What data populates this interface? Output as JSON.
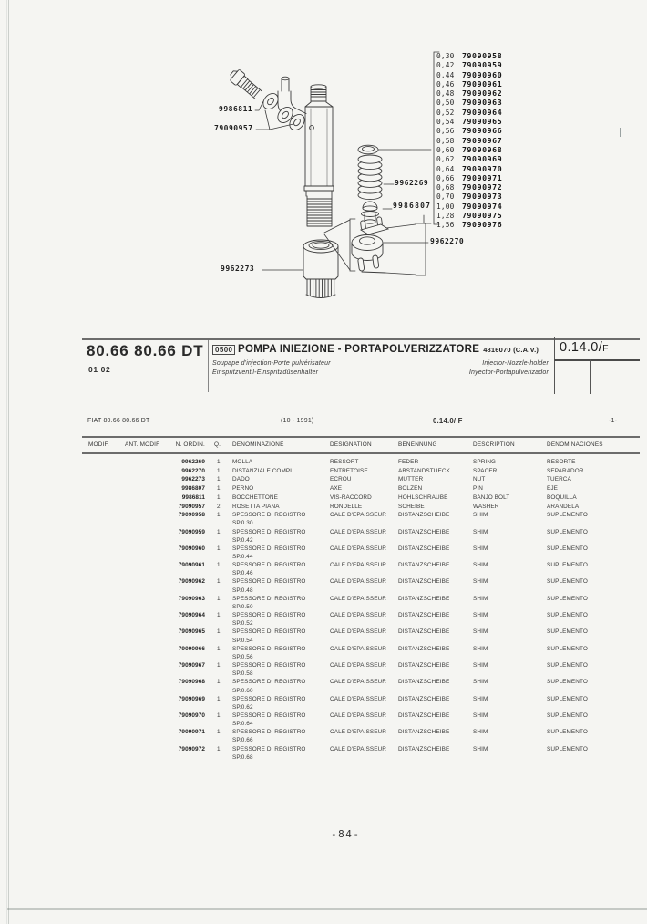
{
  "page": {
    "number": "-84-"
  },
  "diagram": {
    "labels": {
      "banjo_bolt": "9986811",
      "washers": "79090957",
      "spring": "9962269",
      "pin": "9986807",
      "spacer": "9962270",
      "cap_nut": "9962273"
    },
    "shim_list": [
      {
        "thickness": "0,30",
        "part": "79090958"
      },
      {
        "thickness": "0,42",
        "part": "79090959"
      },
      {
        "thickness": "0,44",
        "part": "79090960"
      },
      {
        "thickness": "0,46",
        "part": "79090961"
      },
      {
        "thickness": "0,48",
        "part": "79090962"
      },
      {
        "thickness": "0,50",
        "part": "79090963"
      },
      {
        "thickness": "0,52",
        "part": "79090964"
      },
      {
        "thickness": "0,54",
        "part": "79090965"
      },
      {
        "thickness": "0,56",
        "part": "79090966"
      },
      {
        "thickness": "0,58",
        "part": "79090967"
      },
      {
        "thickness": "0,60",
        "part": "79090968"
      },
      {
        "thickness": "0,62",
        "part": "79090969"
      },
      {
        "thickness": "0,64",
        "part": "79090970"
      },
      {
        "thickness": "0,66",
        "part": "79090971"
      },
      {
        "thickness": "0,68",
        "part": "79090972"
      },
      {
        "thickness": "0,70",
        "part": "79090973"
      },
      {
        "thickness": "1,00",
        "part": "79090974"
      },
      {
        "thickness": "1,28",
        "part": "79090975"
      },
      {
        "thickness": "1,56",
        "part": "79090976"
      }
    ]
  },
  "header": {
    "model_code": "80.66 80.66 DT",
    "model_variant": "01 02",
    "section_code": "0500",
    "title": "POMPA INIEZIONE - PORTAPOLVERIZZATORE",
    "title_ref": "4816070 (C.A.V.)",
    "subtitle_fr": "Soupape d'injection-Porte pulvérisateur",
    "subtitle_de": "Einspritzventil-Einspritzdüsenhalter",
    "subtitle_en": "Injector-Nozzle-holder",
    "subtitle_es": "Inyector-Portapulverizador",
    "tab_code": "0.14.0/",
    "tab_code_suffix": "F"
  },
  "subheader": {
    "model": "FIAT 80.66 80.66 DT",
    "date_range": "(10 - 1991)",
    "code": "0.14.0/ F",
    "sheet": "-1-"
  },
  "table": {
    "columns": [
      "MODIF.",
      "ANT. MODIF",
      "N. ORDIN.",
      "Q.",
      "DENOMINAZIONE",
      "DESIGNATION",
      "BENENNUNG",
      "DESCRIPTION",
      "DENOMINACIONES"
    ],
    "rows": [
      {
        "part": "9962269",
        "qty": "1",
        "it": "MOLLA",
        "it2": "",
        "fr": "RESSORT",
        "de": "FEDER",
        "en": "SPRING",
        "es": "RESORTE"
      },
      {
        "part": "9962270",
        "qty": "1",
        "it": "DISTANZIALE COMPL.",
        "it2": "",
        "fr": "ENTRETOISE",
        "de": "ABSTANDSTUECK",
        "en": "SPACER",
        "es": "SEPARADOR"
      },
      {
        "part": "9962273",
        "qty": "1",
        "it": "DADO",
        "it2": "",
        "fr": "ECROU",
        "de": "MUTTER",
        "en": "NUT",
        "es": "TUERCA"
      },
      {
        "part": "9986807",
        "qty": "1",
        "it": "PERNO",
        "it2": "",
        "fr": "AXE",
        "de": "BOLZEN",
        "en": "PIN",
        "es": "EJE"
      },
      {
        "part": "9986811",
        "qty": "1",
        "it": "BOCCHETTONE",
        "it2": "",
        "fr": "VIS-RACCORD",
        "de": "HOHLSCHRAUBE",
        "en": "BANJO BOLT",
        "es": "BOQUILLA"
      },
      {
        "part": "79090957",
        "qty": "2",
        "it": "ROSETTA PIANA",
        "it2": "",
        "fr": "RONDELLE",
        "de": "SCHEIBE",
        "en": "WASHER",
        "es": "ARANDELA"
      },
      {
        "part": "79090958",
        "qty": "1",
        "it": "SPESSORE DI REGISTRO",
        "it2": "SP.0.30",
        "fr": "CALE D'EPAISSEUR",
        "de": "DISTANZSCHEIBE",
        "en": "SHIM",
        "es": "SUPLEMENTO"
      },
      {
        "part": "79090959",
        "qty": "1",
        "it": "SPESSORE DI REGISTRO",
        "it2": "SP.0.42",
        "fr": "CALE D'EPAISSEUR",
        "de": "DISTANZSCHEIBE",
        "en": "SHIM",
        "es": "SUPLEMENTO"
      },
      {
        "part": "79090960",
        "qty": "1",
        "it": "SPESSORE DI REGISTRO",
        "it2": "SP.0.44",
        "fr": "CALE D'EPAISSEUR",
        "de": "DISTANZSCHEIBE",
        "en": "SHIM",
        "es": "SUPLEMENTO"
      },
      {
        "part": "79090961",
        "qty": "1",
        "it": "SPESSORE DI REGISTRO",
        "it2": "SP.0.46",
        "fr": "CALE D'EPAISSEUR",
        "de": "DISTANZSCHEIBE",
        "en": "SHIM",
        "es": "SUPLEMENTO"
      },
      {
        "part": "79090962",
        "qty": "1",
        "it": "SPESSORE DI REGISTRO",
        "it2": "SP.0.48",
        "fr": "CALE D'EPAISSEUR",
        "de": "DISTANZSCHEIBE",
        "en": "SHIM",
        "es": "SUPLEMENTO"
      },
      {
        "part": "79090963",
        "qty": "1",
        "it": "SPESSORE DI REGISTRO",
        "it2": "SP.0.50",
        "fr": "CALE D'EPAISSEUR",
        "de": "DISTANZSCHEIBE",
        "en": "SHIM",
        "es": "SUPLEMENTO"
      },
      {
        "part": "79090964",
        "qty": "1",
        "it": "SPESSORE DI REGISTRO",
        "it2": "SP.0.52",
        "fr": "CALE D'EPAISSEUR",
        "de": "DISTANZSCHEIBE",
        "en": "SHIM",
        "es": "SUPLEMENTO"
      },
      {
        "part": "79090965",
        "qty": "1",
        "it": "SPESSORE DI REGISTRO",
        "it2": "SP.0.54",
        "fr": "CALE D'EPAISSEUR",
        "de": "DISTANZSCHEIBE",
        "en": "SHIM",
        "es": "SUPLEMENTO"
      },
      {
        "part": "79090966",
        "qty": "1",
        "it": "SPESSORE DI REGISTRO",
        "it2": "SP.0.56",
        "fr": "CALE D'EPAISSEUR",
        "de": "DISTANZSCHEIBE",
        "en": "SHIM",
        "es": "SUPLEMENTO"
      },
      {
        "part": "79090967",
        "qty": "1",
        "it": "SPESSORE DI REGISTRO",
        "it2": "SP.0.58",
        "fr": "CALE D'EPAISSEUR",
        "de": "DISTANZSCHEIBE",
        "en": "SHIM",
        "es": "SUPLEMENTO"
      },
      {
        "part": "79090968",
        "qty": "1",
        "it": "SPESSORE DI REGISTRO",
        "it2": "SP.0.60",
        "fr": "CALE D'EPAISSEUR",
        "de": "DISTANZSCHEIBE",
        "en": "SHIM",
        "es": "SUPLEMENTO"
      },
      {
        "part": "79090969",
        "qty": "1",
        "it": "SPESSORE DI REGISTRO",
        "it2": "SP.0.62",
        "fr": "CALE D'EPAISSEUR",
        "de": "DISTANZSCHEIBE",
        "en": "SHIM",
        "es": "SUPLEMENTO"
      },
      {
        "part": "79090970",
        "qty": "1",
        "it": "SPESSORE DI REGISTRO",
        "it2": "SP.0.64",
        "fr": "CALE D'EPAISSEUR",
        "de": "DISTANZSCHEIBE",
        "en": "SHIM",
        "es": "SUPLEMENTO"
      },
      {
        "part": "79090971",
        "qty": "1",
        "it": "SPESSORE DI REGISTRO",
        "it2": "SP.0.66",
        "fr": "CALE D'EPAISSEUR",
        "de": "DISTANZSCHEIBE",
        "en": "SHIM",
        "es": "SUPLEMENTO"
      },
      {
        "part": "79090972",
        "qty": "1",
        "it": "SPESSORE DI REGISTRO",
        "it2": "SP.0.68",
        "fr": "CALE D'EPAISSEUR",
        "de": "DISTANZSCHEIBE",
        "en": "SHIM",
        "es": "SUPLEMENTO"
      }
    ]
  }
}
